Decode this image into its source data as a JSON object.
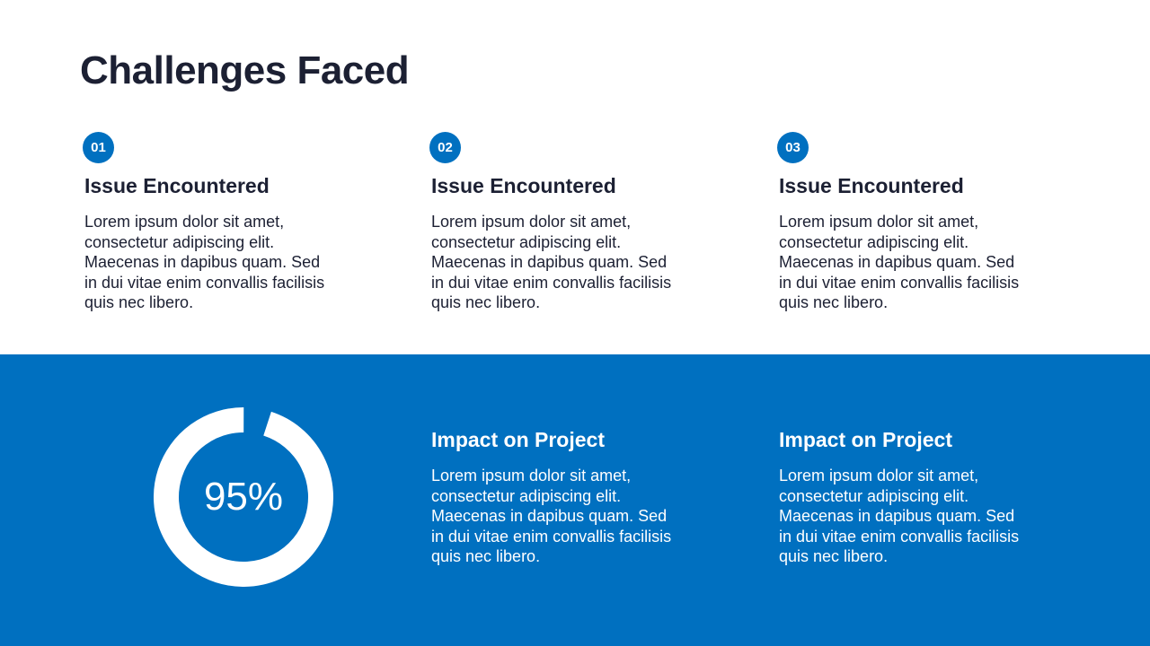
{
  "title": "Challenges Faced",
  "issues": [
    {
      "num": "01",
      "heading": "Issue Encountered",
      "body": "Lorem ipsum dolor sit amet, consectetur adipiscing elit. Maecenas in dapibus quam. Sed in dui vitae enim convallis facilisis quis nec libero."
    },
    {
      "num": "02",
      "heading": "Issue Encountered",
      "body": "Lorem ipsum dolor sit amet, consectetur adipiscing elit. Maecenas in dapibus quam. Sed in dui vitae enim convallis facilisis quis nec libero."
    },
    {
      "num": "03",
      "heading": "Issue Encountered",
      "body": "Lorem ipsum dolor sit amet, consectetur adipiscing elit. Maecenas in dapibus quam. Sed in dui vitae enim convallis facilisis quis nec libero."
    }
  ],
  "progress": {
    "label": "95%",
    "value": 0.95
  },
  "impacts": [
    {
      "heading": "Impact on Project",
      "body": "Lorem ipsum dolor sit amet, consectetur adipiscing elit. Maecenas in dapibus quam. Sed in dui vitae enim convallis facilisis quis nec libero."
    },
    {
      "heading": "Impact on Project",
      "body": "Lorem ipsum dolor sit amet, consectetur adipiscing elit. Maecenas in dapibus quam. Sed in dui vitae enim convallis facilisis quis nec libero."
    }
  ],
  "colors": {
    "accent": "#0070c0",
    "text": "#1c2033"
  }
}
